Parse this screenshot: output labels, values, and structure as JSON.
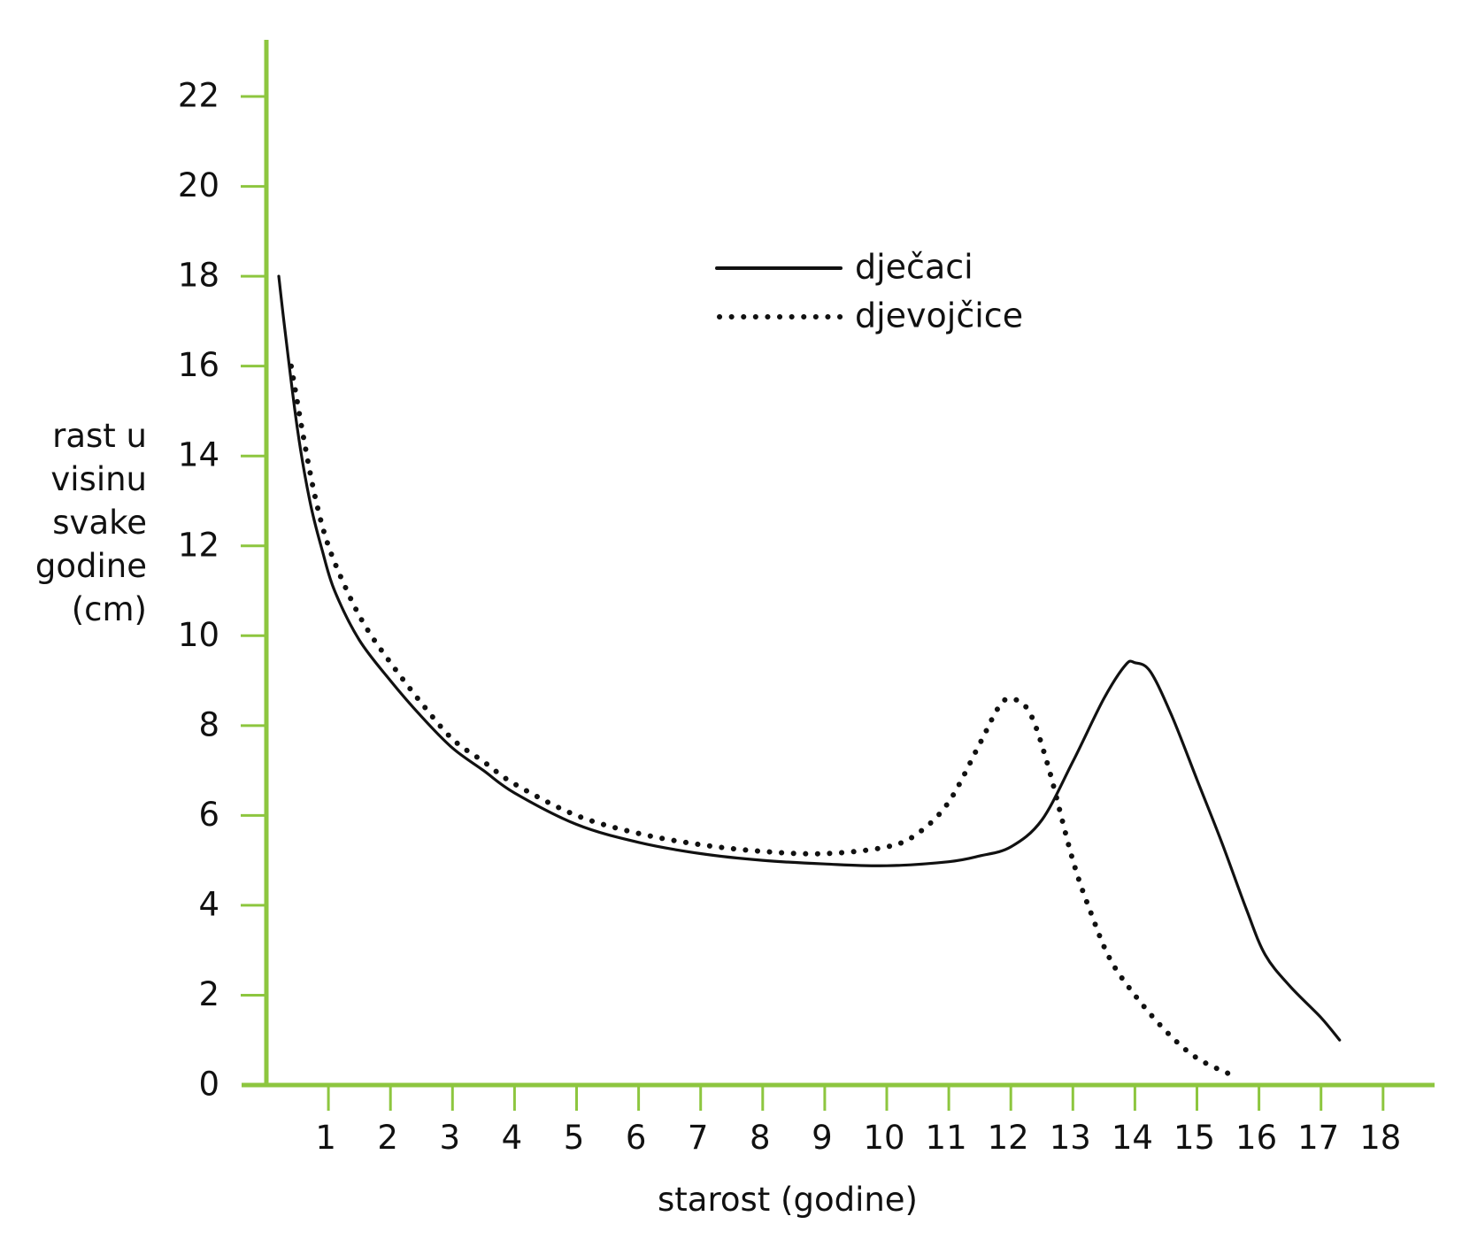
{
  "chart_data": {
    "type": "line",
    "title": "",
    "xlabel": "starost (godine)",
    "ylabel": [
      "rast u",
      "visinu",
      "svake",
      "godine",
      "(cm)"
    ],
    "xlim": [
      0,
      18.6
    ],
    "ylim": [
      0,
      23.3
    ],
    "xticks": [
      1,
      2,
      3,
      4,
      5,
      6,
      7,
      8,
      9,
      10,
      11,
      12,
      13,
      14,
      15,
      16,
      17,
      18
    ],
    "yticks": [
      0,
      2,
      4,
      6,
      8,
      10,
      12,
      14,
      16,
      18,
      20,
      22
    ],
    "grid": false,
    "legend_position": "top-center",
    "axis_color": "#8dc63f",
    "line_color": "#111111",
    "series": [
      {
        "name": "dječaci",
        "style": "solid",
        "points": [
          [
            0.2,
            18.0
          ],
          [
            0.3,
            16.8
          ],
          [
            0.5,
            14.6
          ],
          [
            0.7,
            13.0
          ],
          [
            0.9,
            11.9
          ],
          [
            1.1,
            11.0
          ],
          [
            1.5,
            9.9
          ],
          [
            2.0,
            9.0
          ],
          [
            2.5,
            8.2
          ],
          [
            3.0,
            7.5
          ],
          [
            3.5,
            7.0
          ],
          [
            4.0,
            6.5
          ],
          [
            5.0,
            5.8
          ],
          [
            6.0,
            5.4
          ],
          [
            7.0,
            5.15
          ],
          [
            8.0,
            5.0
          ],
          [
            9.0,
            4.92
          ],
          [
            10.0,
            4.88
          ],
          [
            11.0,
            4.97
          ],
          [
            11.5,
            5.1
          ],
          [
            12.0,
            5.3
          ],
          [
            12.5,
            5.9
          ],
          [
            13.0,
            7.2
          ],
          [
            13.5,
            8.6
          ],
          [
            13.85,
            9.35
          ],
          [
            14.0,
            9.4
          ],
          [
            14.25,
            9.2
          ],
          [
            14.6,
            8.2
          ],
          [
            15.0,
            6.8
          ],
          [
            15.4,
            5.4
          ],
          [
            15.8,
            3.9
          ],
          [
            16.1,
            2.9
          ],
          [
            16.5,
            2.2
          ],
          [
            17.0,
            1.5
          ],
          [
            17.3,
            1.0
          ]
        ]
      },
      {
        "name": "djevojčice",
        "style": "dotted",
        "points": [
          [
            0.4,
            16.0
          ],
          [
            0.6,
            14.4
          ],
          [
            0.8,
            13.0
          ],
          [
            1.0,
            12.0
          ],
          [
            1.3,
            11.0
          ],
          [
            1.6,
            10.2
          ],
          [
            2.0,
            9.4
          ],
          [
            2.5,
            8.5
          ],
          [
            3.0,
            7.7
          ],
          [
            3.5,
            7.2
          ],
          [
            4.0,
            6.7
          ],
          [
            5.0,
            6.0
          ],
          [
            6.0,
            5.6
          ],
          [
            7.0,
            5.35
          ],
          [
            8.0,
            5.2
          ],
          [
            9.0,
            5.15
          ],
          [
            10.0,
            5.3
          ],
          [
            10.5,
            5.6
          ],
          [
            11.0,
            6.3
          ],
          [
            11.5,
            7.6
          ],
          [
            11.8,
            8.4
          ],
          [
            12.0,
            8.6
          ],
          [
            12.3,
            8.3
          ],
          [
            12.6,
            7.1
          ],
          [
            13.0,
            5.0
          ],
          [
            13.3,
            3.8
          ],
          [
            13.6,
            2.8
          ],
          [
            14.0,
            2.0
          ],
          [
            14.5,
            1.2
          ],
          [
            15.0,
            0.6
          ],
          [
            15.6,
            0.2
          ]
        ]
      }
    ]
  }
}
